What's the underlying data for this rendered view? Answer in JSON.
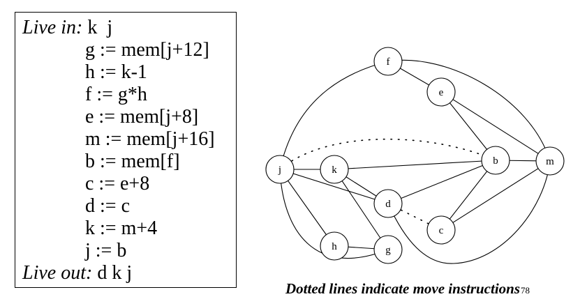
{
  "code": {
    "live_in_label": "Live in:",
    "live_in_vars": "k  j",
    "instructions": [
      "g := mem[j+12]",
      "h := k-1",
      "f := g*h",
      "e := mem[j+8]",
      "m := mem[j+16]",
      "b := mem[f]",
      "c := e+8",
      "d := c",
      "k := m+4",
      "j := b"
    ],
    "live_out_label": "Live out:",
    "live_out_vars": "d k j"
  },
  "graph": {
    "nodes": [
      "f",
      "e",
      "j",
      "k",
      "b",
      "m",
      "d",
      "c",
      "h",
      "g"
    ],
    "interference_edges": [
      [
        "f",
        "e"
      ],
      [
        "f",
        "m"
      ],
      [
        "f",
        "j"
      ],
      [
        "e",
        "b"
      ],
      [
        "e",
        "m"
      ],
      [
        "j",
        "k"
      ],
      [
        "j",
        "d"
      ],
      [
        "j",
        "h"
      ],
      [
        "j",
        "g"
      ],
      [
        "k",
        "b"
      ],
      [
        "k",
        "d"
      ],
      [
        "k",
        "g"
      ],
      [
        "b",
        "m"
      ],
      [
        "b",
        "d"
      ],
      [
        "b",
        "c"
      ],
      [
        "m",
        "c"
      ],
      [
        "m",
        "d"
      ],
      [
        "h",
        "g"
      ]
    ],
    "move_edges": [
      [
        "j",
        "b"
      ],
      [
        "d",
        "c"
      ]
    ]
  },
  "caption": {
    "text": "Dotted lines indicate move instructions",
    "page_number": "78"
  }
}
